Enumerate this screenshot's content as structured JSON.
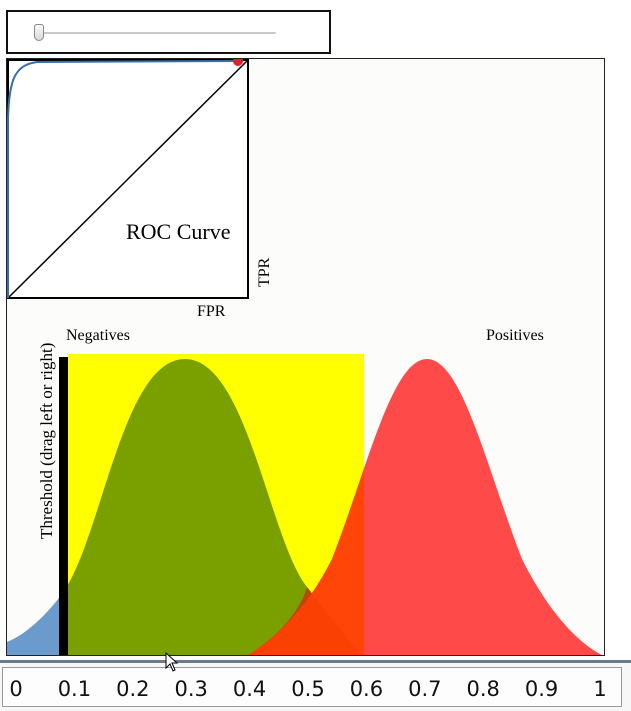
{
  "threshold_slider": {
    "value_fraction": 0.02
  },
  "roc": {
    "title": "ROC Curve",
    "xlabel": "FPR",
    "ylabel": "TPR",
    "curve_color": "#3a6fa8",
    "operating_point_color": "#e0202a"
  },
  "distributions": {
    "negatives": {
      "label": "Negatives",
      "mean": 0.3,
      "color": "#7ba300"
    },
    "positives": {
      "label": "Positives",
      "mean": 0.7,
      "color": "#ff4a4a"
    },
    "threshold_label": "Threshold (drag left or right)",
    "threshold_value": 0.1,
    "highlight_color": "#ffff00",
    "negative_left_tail_color": "#6b9bcc",
    "highlight_range": [
      0.1,
      0.6
    ]
  },
  "axis": {
    "ticks": [
      "0",
      "0.1",
      "0.2",
      "0.3",
      "0.4",
      "0.5",
      "0.6",
      "0.7",
      "0.8",
      "0.9",
      "1"
    ]
  }
}
